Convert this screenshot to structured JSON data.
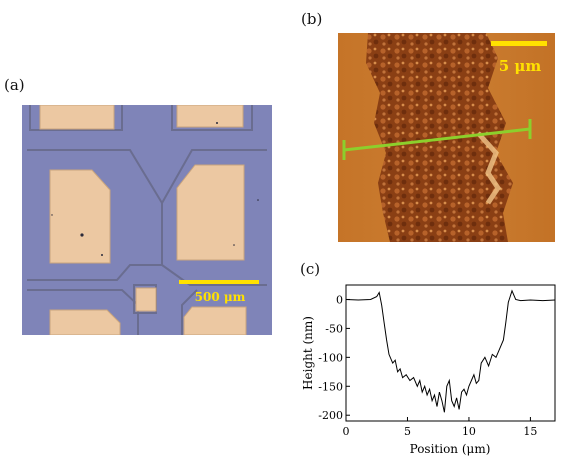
{
  "panels": {
    "a": {
      "label": "(a)",
      "scalebar": "500 μm",
      "colors": {
        "substrate": "#7f84b8",
        "pad": "#ecc8a2",
        "trench": "#6c6e92",
        "scalebar": "#ffe100"
      }
    },
    "b": {
      "label": "(b)",
      "scalebar": "5 μm",
      "colors": {
        "background": "#c7782c",
        "nanowire": "#8a3f14",
        "bright": "#f3c78a",
        "scalebar": "#ffe100",
        "line": "#8ccf2c"
      }
    },
    "c": {
      "label": "(c)"
    }
  },
  "chart_data": {
    "type": "line",
    "xlabel": "Position (μm)",
    "ylabel": "Height (nm)",
    "xlim": [
      0,
      17
    ],
    "ylim": [
      -210,
      25
    ],
    "xticks": [
      0,
      5,
      10,
      15
    ],
    "yticks": [
      0,
      -50,
      -100,
      -150,
      -200
    ],
    "series": [
      {
        "x": [
          0,
          1,
          2,
          2.5,
          2.7,
          2.9,
          3.1,
          3.3,
          3.5,
          3.8,
          4.0,
          4.2,
          4.4,
          4.6,
          4.9,
          5.2,
          5.5,
          5.8,
          6.0,
          6.2,
          6.4,
          6.6,
          6.8,
          7.0,
          7.2,
          7.4,
          7.6,
          7.8,
          8.0,
          8.2,
          8.4,
          8.6,
          8.8,
          9.0,
          9.2,
          9.4,
          9.6,
          9.8,
          10.0,
          10.2,
          10.4,
          10.6,
          10.8,
          11.0,
          11.3,
          11.6,
          11.9,
          12.2,
          12.5,
          12.8,
          13.0,
          13.2,
          13.5,
          13.8,
          14.2,
          15,
          16,
          17
        ],
        "y": [
          0,
          -1,
          0,
          5,
          12,
          -10,
          -40,
          -70,
          -95,
          -110,
          -105,
          -125,
          -120,
          -135,
          -130,
          -140,
          -135,
          -150,
          -140,
          -160,
          -150,
          -165,
          -155,
          -175,
          -165,
          -185,
          -160,
          -175,
          -195,
          -150,
          -140,
          -175,
          -185,
          -170,
          -190,
          -160,
          -155,
          -165,
          -150,
          -140,
          -130,
          -145,
          -140,
          -110,
          -100,
          -115,
          -95,
          -100,
          -85,
          -70,
          -40,
          -5,
          15,
          0,
          -2,
          -1,
          -2,
          -1
        ]
      }
    ]
  }
}
